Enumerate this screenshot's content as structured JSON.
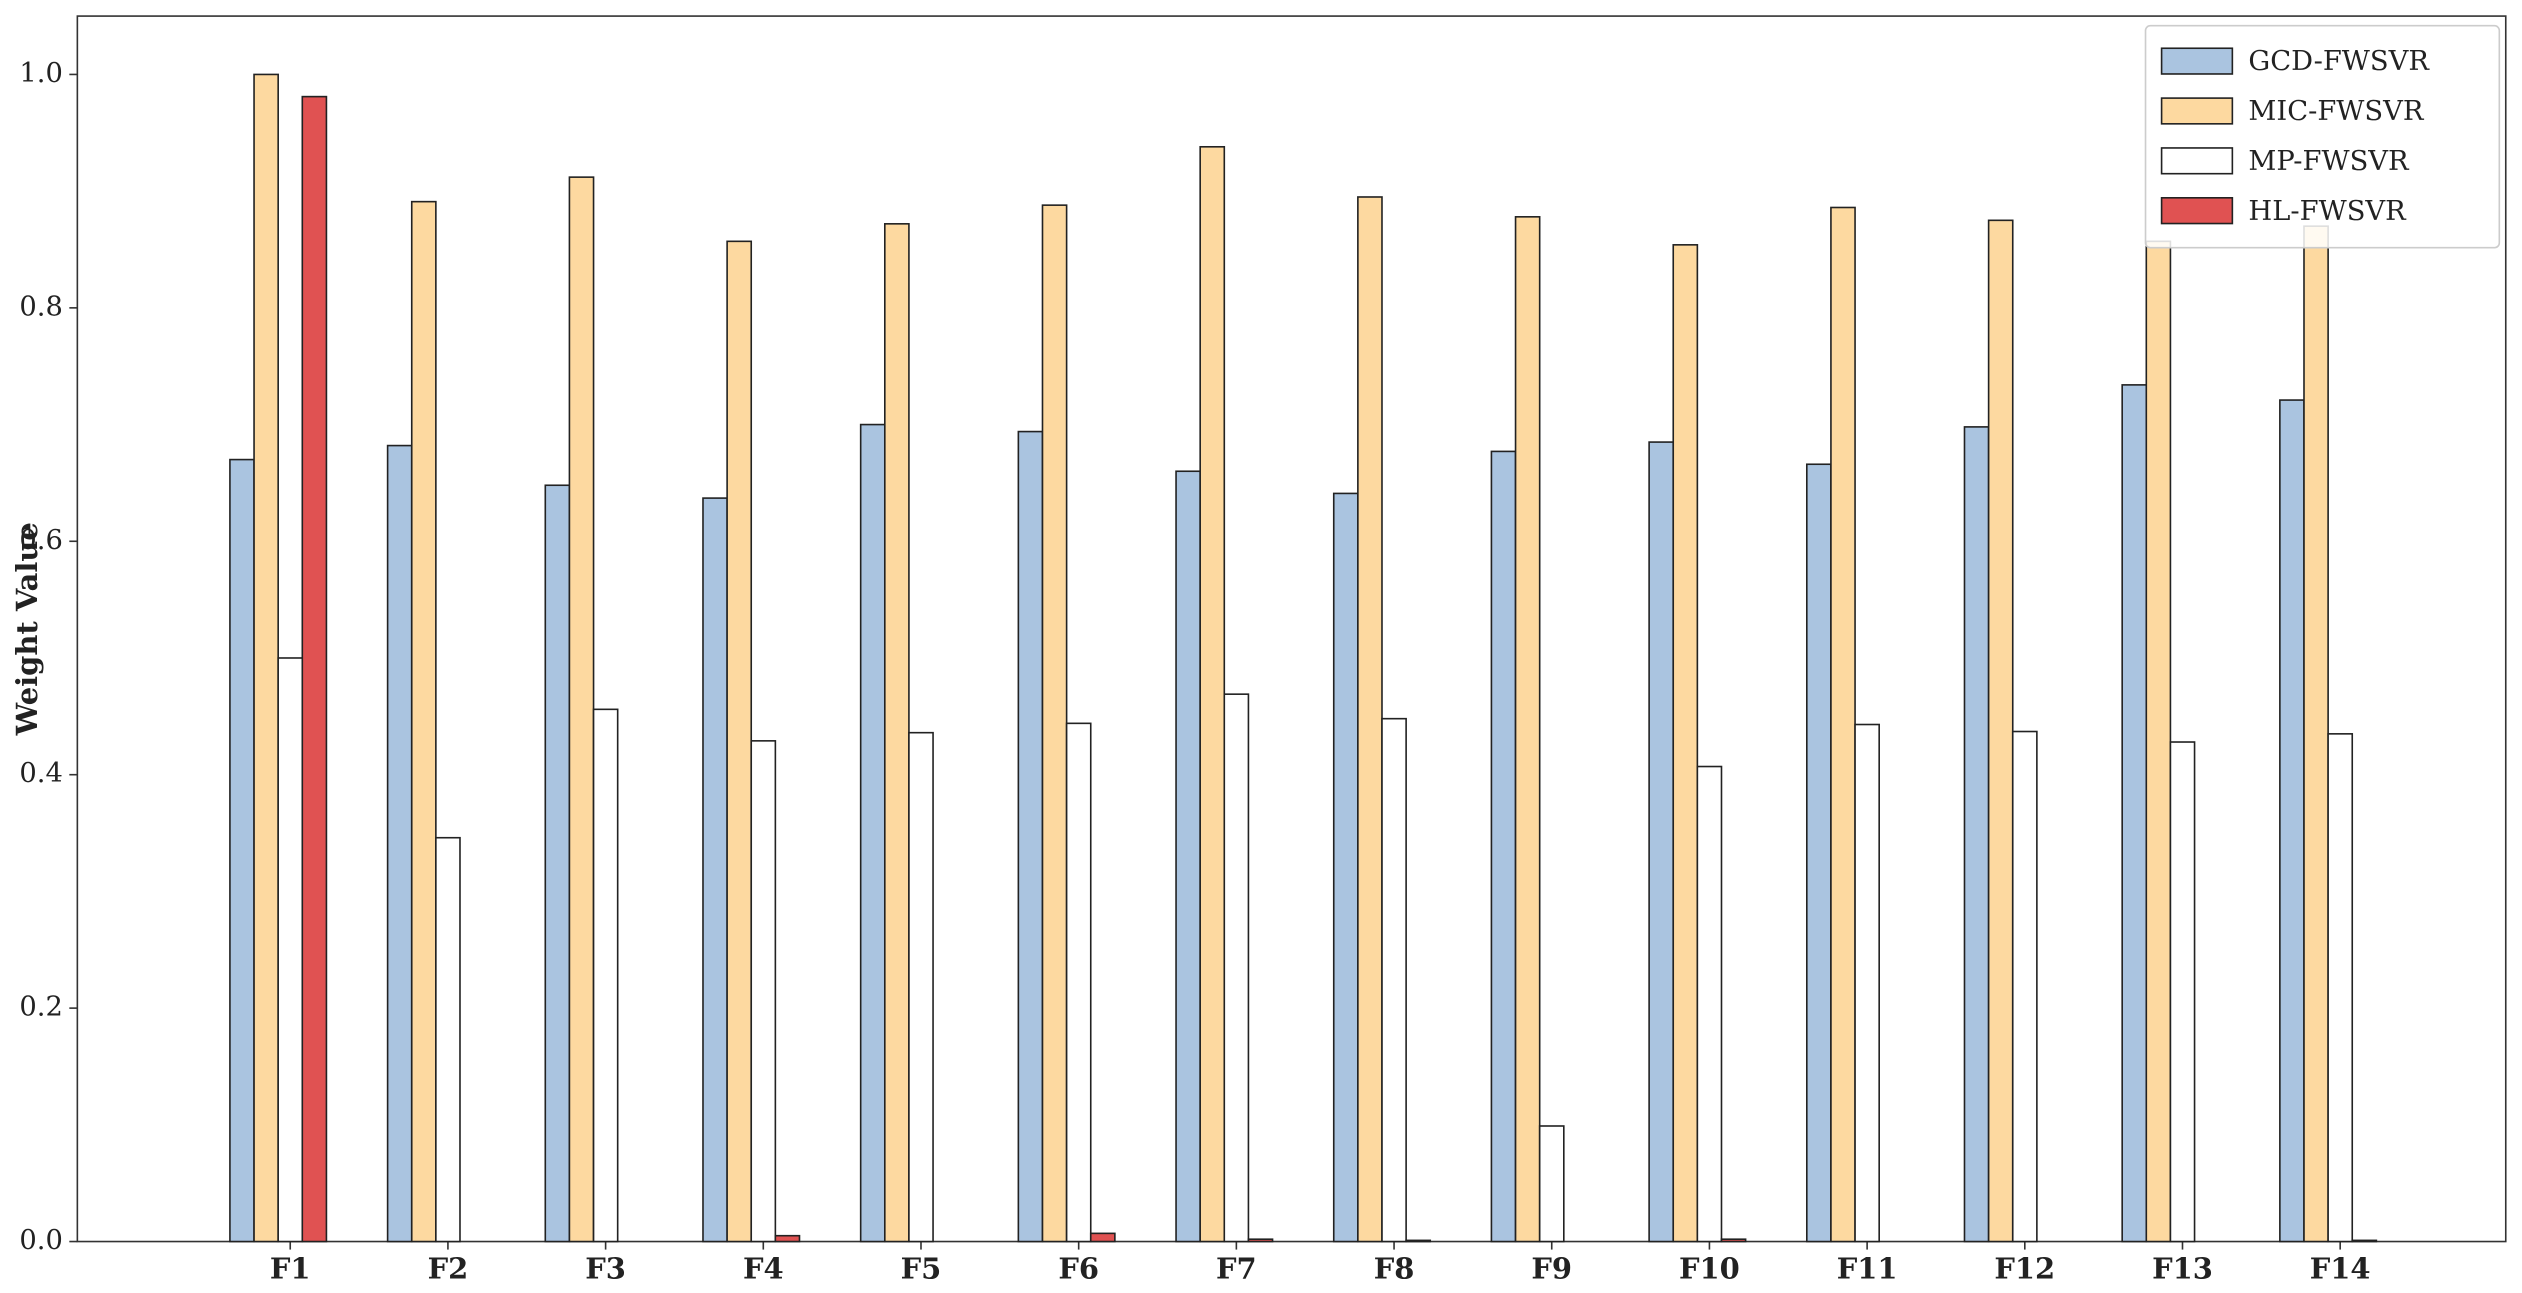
{
  "chart_data": {
    "type": "bar",
    "ylabel": "Weight Value",
    "categories": [
      "F1",
      "F2",
      "F3",
      "F4",
      "F5",
      "F6",
      "F7",
      "F8",
      "F9",
      "F10",
      "F11",
      "F12",
      "F13",
      "F14"
    ],
    "series": [
      {
        "name": "GCD-FWSVR",
        "color": "#aac4e0",
        "values": [
          0.67,
          0.682,
          0.648,
          0.637,
          0.7,
          0.694,
          0.66,
          0.641,
          0.677,
          0.685,
          0.666,
          0.698,
          0.734,
          0.721
        ]
      },
      {
        "name": "MIC-FWSVR",
        "color": "#fdd9a0",
        "values": [
          1.0,
          0.891,
          0.912,
          0.857,
          0.872,
          0.888,
          0.938,
          0.895,
          0.878,
          0.854,
          0.886,
          0.875,
          0.857,
          0.87
        ]
      },
      {
        "name": "MP-FWSVR",
        "color": "#ffffff",
        "values": [
          0.5,
          0.346,
          0.456,
          0.429,
          0.436,
          0.444,
          0.469,
          0.448,
          0.099,
          0.407,
          0.443,
          0.437,
          0.428,
          0.435
        ]
      },
      {
        "name": "HL-FWSVR",
        "color": "#e05252",
        "values": [
          0.981,
          0,
          0,
          0.005,
          0,
          0.007,
          0.002,
          0.001,
          0,
          0.002,
          0,
          0,
          0,
          0.001
        ]
      }
    ],
    "ylim": [
      0,
      1.05
    ],
    "yticks": [
      {
        "value": 0,
        "label": "0.0"
      },
      0.2,
      0.4,
      0.6,
      0.8,
      {
        "value": 1,
        "label": "1.0"
      }
    ],
    "legend": "upper right"
  }
}
